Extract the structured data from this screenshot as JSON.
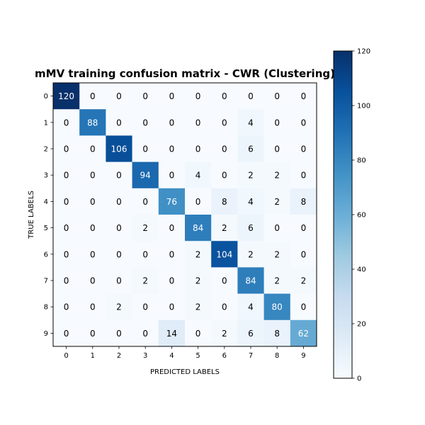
{
  "chart_data": {
    "type": "heatmap",
    "title": "mMV training confusion matrix - CWR (Clustering)",
    "xlabel": "PREDICTED LABELS",
    "ylabel": "TRUE LABELS",
    "x_categories": [
      "0",
      "1",
      "2",
      "3",
      "4",
      "5",
      "6",
      "7",
      "8",
      "9"
    ],
    "y_categories": [
      "0",
      "1",
      "2",
      "3",
      "4",
      "5",
      "6",
      "7",
      "8",
      "9"
    ],
    "values": [
      [
        120,
        0,
        0,
        0,
        0,
        0,
        0,
        0,
        0,
        0
      ],
      [
        0,
        88,
        0,
        0,
        0,
        0,
        0,
        4,
        0,
        0
      ],
      [
        0,
        0,
        106,
        0,
        0,
        0,
        0,
        6,
        0,
        0
      ],
      [
        0,
        0,
        0,
        94,
        0,
        4,
        0,
        2,
        2,
        0
      ],
      [
        0,
        0,
        0,
        0,
        76,
        0,
        8,
        4,
        2,
        8
      ],
      [
        0,
        0,
        0,
        2,
        0,
        84,
        2,
        6,
        0,
        0
      ],
      [
        0,
        0,
        0,
        0,
        0,
        2,
        104,
        2,
        2,
        0
      ],
      [
        0,
        0,
        0,
        2,
        0,
        2,
        0,
        84,
        2,
        2
      ],
      [
        0,
        0,
        2,
        0,
        0,
        2,
        0,
        4,
        80,
        0
      ],
      [
        0,
        0,
        0,
        0,
        14,
        0,
        2,
        6,
        8,
        62
      ]
    ],
    "colormap": "Blues",
    "vmin": 0,
    "vmax": 120,
    "colorbar_ticks": [
      "0",
      "20",
      "40",
      "60",
      "80",
      "100",
      "120"
    ],
    "colors": {
      "low": "#f7fbff",
      "high": "#08306b"
    },
    "grid": false
  }
}
